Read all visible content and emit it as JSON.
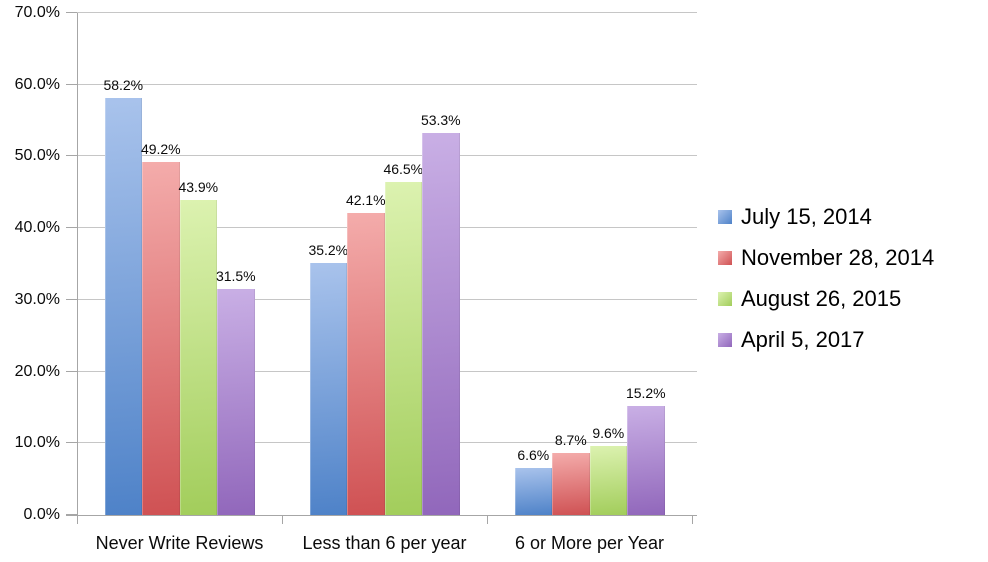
{
  "chart_data": {
    "type": "bar",
    "title": "",
    "categories": [
      "Never Write Reviews",
      "Less than 6 per year",
      "6 or More per Year"
    ],
    "series": [
      {
        "name": "July 15, 2014",
        "values": [
          58.2,
          35.2,
          6.6
        ],
        "labels": [
          "58.2%",
          "35.2%",
          "6.6%"
        ],
        "color_light": "#A9C3EC",
        "color_dark": "#4E82C8"
      },
      {
        "name": "November 28, 2014",
        "values": [
          49.2,
          42.1,
          8.7
        ],
        "labels": [
          "49.2%",
          "42.1%",
          "8.7%"
        ],
        "color_light": "#F4ACAB",
        "color_dark": "#CF5153"
      },
      {
        "name": "August 26, 2015",
        "values": [
          43.9,
          46.5,
          9.6
        ],
        "labels": [
          "43.9%",
          "46.5%",
          "9.6%"
        ],
        "color_light": "#DCF2B0",
        "color_dark": "#A2CD5B"
      },
      {
        "name": "April 5, 2017",
        "values": [
          31.5,
          53.3,
          15.2
        ],
        "labels": [
          "31.5%",
          "53.3%",
          "15.2%"
        ],
        "color_light": "#C9AFE5",
        "color_dark": "#9167BB"
      }
    ],
    "ylim": [
      0,
      70
    ],
    "y_tick_step": 10,
    "y_tick_labels": [
      "0.0%",
      "10.0%",
      "20.0%",
      "30.0%",
      "40.0%",
      "50.0%",
      "60.0%",
      "70.0%"
    ],
    "grid": true,
    "legend_position": "right"
  },
  "colors": {
    "background": "#FFFFFF",
    "gridline": "#C6C6C6",
    "axis": "#A6A6A6",
    "text": "#0B0B0B"
  }
}
